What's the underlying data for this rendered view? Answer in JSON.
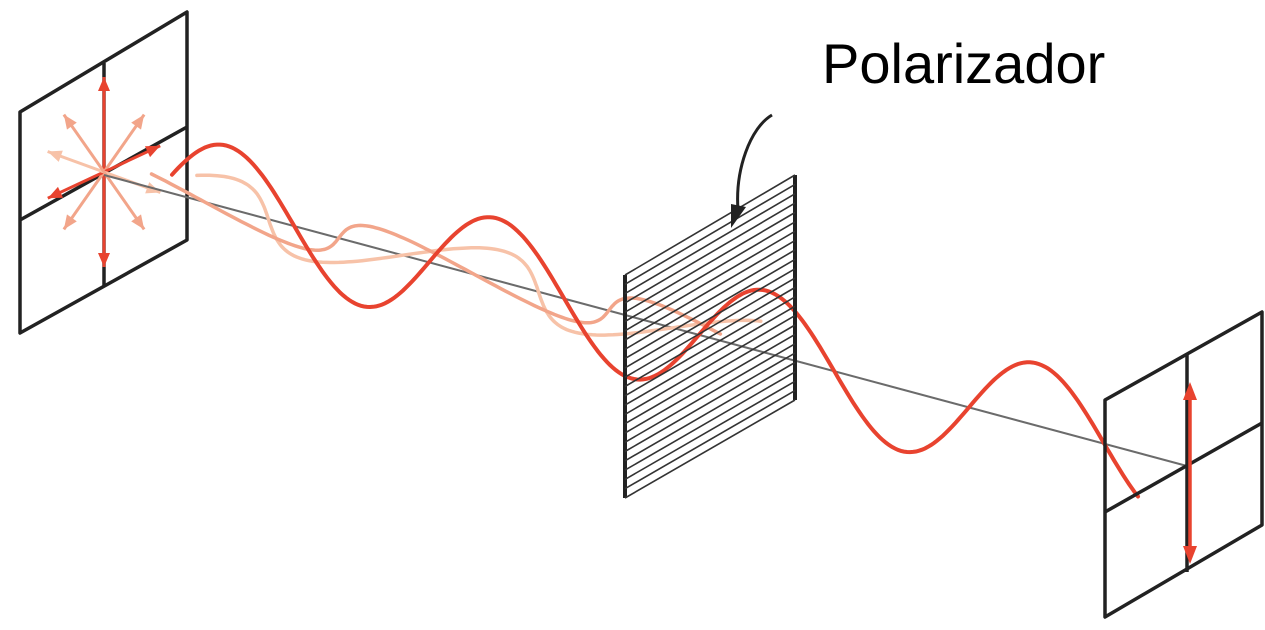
{
  "label": "Polarizador",
  "colors": {
    "wave": "#e8432f",
    "wave_faded": "#f2a58a",
    "wave_faded2": "#f7c2a8",
    "frame": "#222222",
    "axis": "#6b6b6b",
    "background": "#ffffff"
  },
  "icons": [
    "polarizer-arrow-icon"
  ]
}
